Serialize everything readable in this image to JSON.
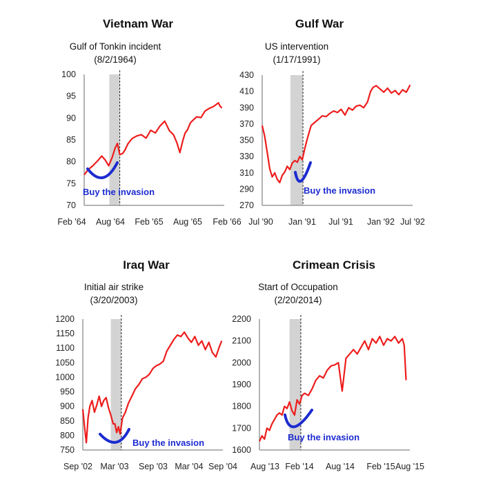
{
  "chart_data": [
    {
      "type": "line",
      "title": "Vietnam War",
      "event_label": "Gulf of Tonkin incident",
      "event_date": "(8/2/1964)",
      "annotation": "Buy the invasion",
      "xticks": [
        "Feb '64",
        "Aug '64",
        "Feb '65",
        "Aug '65",
        "Feb '66"
      ],
      "xrange": [
        0,
        24
      ],
      "ylim": [
        70,
        100
      ],
      "yticks": [
        70,
        75,
        80,
        85,
        90,
        95,
        100
      ],
      "event_x": 6.1,
      "shade": [
        4.3,
        6.1
      ],
      "series": [
        {
          "x": [
            0,
            0.7,
            1.5,
            2.3,
            3.0,
            3.6,
            4.2,
            4.8,
            5.3,
            5.7,
            6.1,
            6.6,
            7.0,
            7.5,
            8.2,
            9.0,
            9.8,
            10.6,
            11.4,
            12.2,
            13.0,
            13.8,
            14.6,
            15.3,
            15.9,
            16.4,
            16.9,
            17.3,
            17.7,
            18.2,
            18.7,
            19.3,
            20.0,
            20.7,
            21.4,
            22.1,
            22.6,
            23.0,
            23.3,
            23.6
          ],
          "values": [
            77,
            78.2,
            79.1,
            80.2,
            81.3,
            80.4,
            79.1,
            81.0,
            83.1,
            84.2,
            81.6,
            81.9,
            82.7,
            84.1,
            85.3,
            85.9,
            86.2,
            85.4,
            87.2,
            86.6,
            88.2,
            89.3,
            87.1,
            86.2,
            84.3,
            82.1,
            84.8,
            86.6,
            87.3,
            88.9,
            89.6,
            90.3,
            90.1,
            91.6,
            92.2,
            92.6,
            93.1,
            93.5,
            92.7,
            92.3
          ]
        }
      ]
    },
    {
      "type": "line",
      "title": "Gulf War",
      "event_label": "US intervention",
      "event_date": "(1/17/1991)",
      "annotation": "Buy the invasion",
      "xticks": [
        "Jul '90",
        "Jan '91",
        "Jul '91",
        "Jan '92",
        "Jul '92"
      ],
      "xrange": [
        0,
        24
      ],
      "ylim": [
        270,
        430
      ],
      "yticks": [
        270,
        290,
        310,
        330,
        350,
        370,
        390,
        410,
        430
      ],
      "event_x": 6.5,
      "shade": [
        4.5,
        6.5
      ],
      "series": [
        {
          "x": [
            0,
            0.4,
            0.8,
            1.2,
            1.6,
            2.0,
            2.4,
            2.8,
            3.2,
            3.6,
            4.0,
            4.4,
            4.8,
            5.2,
            5.6,
            6.0,
            6.4,
            6.8,
            7.2,
            7.8,
            8.4,
            9.0,
            9.6,
            10.2,
            10.8,
            11.4,
            12.0,
            12.6,
            13.2,
            13.8,
            14.4,
            15.0,
            15.6,
            16.2,
            16.8,
            17.3,
            17.7,
            18.2,
            18.8,
            19.4,
            20.0,
            20.6,
            21.2,
            21.8,
            22.4,
            23.0,
            23.6
          ],
          "values": [
            368,
            355,
            335,
            315,
            305,
            310,
            302,
            298,
            307,
            311,
            318,
            314,
            322,
            325,
            323,
            330,
            326,
            340,
            352,
            368,
            372,
            376,
            380,
            379,
            383,
            386,
            384,
            388,
            381,
            390,
            387,
            392,
            393,
            390,
            397,
            410,
            415,
            417,
            413,
            409,
            414,
            408,
            411,
            406,
            412,
            409,
            418
          ]
        }
      ]
    },
    {
      "type": "line",
      "title": "Iraq War",
      "event_label": "Initial air strike",
      "event_date": "(3/20/2003)",
      "annotation": "Buy the invasion",
      "xticks": [
        "Sep '02",
        "Mar '03",
        "Sep '03",
        "Mar '04",
        "Sep '04"
      ],
      "xrange": [
        0,
        24
      ],
      "ylim": [
        750,
        1200
      ],
      "yticks": [
        750,
        800,
        850,
        900,
        950,
        1000,
        1050,
        1100,
        1150,
        1200
      ],
      "event_x": 6.6,
      "shade": [
        4.8,
        6.6
      ],
      "series": [
        {
          "x": [
            0,
            0.3,
            0.6,
            0.9,
            1.2,
            1.6,
            2.0,
            2.4,
            2.8,
            3.2,
            3.6,
            4.0,
            4.4,
            4.8,
            5.2,
            5.5,
            5.8,
            6.1,
            6.4,
            6.8,
            7.3,
            7.8,
            8.4,
            9.0,
            9.6,
            10.2,
            10.8,
            11.4,
            12.0,
            12.6,
            13.2,
            13.8,
            14.4,
            15.0,
            15.6,
            16.2,
            16.8,
            17.4,
            18.0,
            18.6,
            19.2,
            19.8,
            20.4,
            21.0,
            21.6,
            22.2,
            22.8,
            23.4,
            23.8
          ],
          "values": [
            890,
            830,
            775,
            860,
            900,
            920,
            880,
            905,
            935,
            900,
            920,
            930,
            895,
            870,
            840,
            840,
            810,
            830,
            805,
            860,
            880,
            910,
            935,
            960,
            975,
            995,
            1000,
            1010,
            1030,
            1040,
            1045,
            1055,
            1090,
            1110,
            1130,
            1145,
            1140,
            1155,
            1135,
            1120,
            1140,
            1110,
            1125,
            1095,
            1120,
            1085,
            1070,
            1105,
            1125
          ]
        }
      ]
    },
    {
      "type": "line",
      "title": "Crimean Crisis",
      "event_label": "Start of Occupation",
      "event_date": "(2/20/2014)",
      "annotation": "Buy the invasion",
      "xticks": [
        "Aug '13",
        "Feb '14",
        "Aug '14",
        "Feb '15",
        "Aug '15"
      ],
      "xrange": [
        0,
        24
      ],
      "ylim": [
        1600,
        2200
      ],
      "yticks": [
        1600,
        1700,
        1800,
        1900,
        2000,
        2100,
        2200
      ],
      "event_x": 6.6,
      "shade": [
        4.8,
        6.6
      ],
      "series": [
        {
          "x": [
            0,
            0.4,
            0.8,
            1.2,
            1.6,
            2.0,
            2.4,
            2.8,
            3.2,
            3.6,
            4.0,
            4.4,
            4.8,
            5.2,
            5.6,
            6.0,
            6.4,
            6.8,
            7.2,
            7.8,
            8.4,
            9.0,
            9.6,
            10.2,
            10.8,
            11.4,
            12.0,
            12.6,
            13.2,
            13.8,
            14.4,
            15.0,
            15.6,
            16.2,
            16.8,
            17.4,
            18.0,
            18.6,
            19.2,
            19.8,
            20.4,
            21.0,
            21.6,
            22.2,
            22.8,
            23.1,
            23.4
          ],
          "values": [
            1640,
            1665,
            1650,
            1700,
            1690,
            1720,
            1740,
            1760,
            1770,
            1760,
            1800,
            1790,
            1820,
            1780,
            1760,
            1830,
            1810,
            1850,
            1860,
            1850,
            1880,
            1920,
            1940,
            1930,
            1965,
            1985,
            1990,
            2000,
            1870,
            2020,
            2040,
            2060,
            2040,
            2070,
            2100,
            2060,
            2110,
            2090,
            2120,
            2080,
            2110,
            2100,
            2120,
            2090,
            2110,
            2080,
            1920
          ]
        }
      ]
    }
  ]
}
